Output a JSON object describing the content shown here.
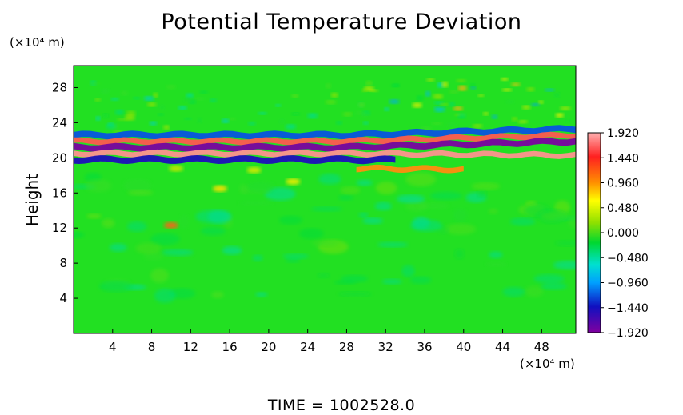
{
  "chart_data": {
    "type": "heatmap",
    "title": "Potential Temperature Deviation",
    "xlabel": "",
    "ylabel": "Height",
    "x_unit": "(×10⁴ m)",
    "y_unit": "(×10⁴ m)",
    "xlim": [
      0,
      51.5
    ],
    "ylim": [
      0,
      30.5
    ],
    "x_ticks": [
      4,
      8,
      12,
      16,
      20,
      24,
      28,
      32,
      36,
      40,
      44,
      48
    ],
    "y_ticks": [
      4,
      8,
      12,
      16,
      20,
      24,
      28
    ],
    "colorbar": {
      "min": -1.92,
      "max": 1.92,
      "labels": [
        "1.920",
        "1.440",
        "0.960",
        "0.480",
        "0.000",
        "−0.480",
        "−0.960",
        "−1.440",
        "−1.920"
      ]
    },
    "features": [
      {
        "kind": "band",
        "z": 22.6,
        "x0": 0,
        "x1": 51.5,
        "value": -1.2,
        "width": 0.7
      },
      {
        "kind": "band",
        "z": 21.9,
        "x0": 0,
        "x1": 51.5,
        "value": 1.6,
        "width": 0.6
      },
      {
        "kind": "band",
        "z": 21.2,
        "x0": 0,
        "x1": 51.5,
        "value": -1.9,
        "width": 0.7
      },
      {
        "kind": "band",
        "z": 20.5,
        "x0": 0,
        "x1": 51.5,
        "value": 1.8,
        "width": 0.6
      },
      {
        "kind": "band",
        "z": 19.8,
        "x0": 0,
        "x1": 33,
        "value": -1.5,
        "width": 0.7
      },
      {
        "kind": "band",
        "z": 18.8,
        "x0": 29,
        "x1": 40,
        "value": 1.2,
        "width": 0.6
      }
    ],
    "annotation": "TIME = 1002528.0"
  }
}
